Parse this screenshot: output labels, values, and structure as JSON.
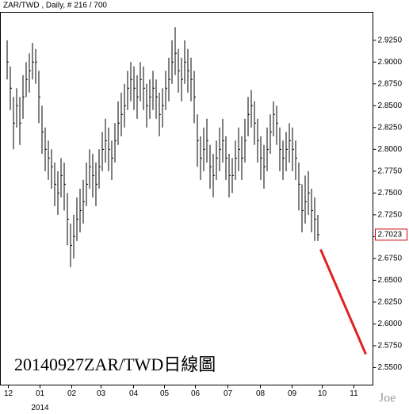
{
  "chart_data": {
    "type": "ohlc",
    "title": "ZAR/TWD , Daily, # 216 / 700",
    "annotation": "20140927ZAR/TWD日線圖",
    "watermark": "Joe",
    "x_sublabel": "2014",
    "color": "#000000",
    "high": [
      2.925,
      2.895,
      2.86,
      2.87,
      2.86,
      2.885,
      2.9,
      2.91,
      2.922,
      2.915,
      2.89,
      2.85,
      2.825,
      2.81,
      2.8,
      2.785,
      2.775,
      2.79,
      2.785,
      2.75,
      2.715,
      2.725,
      2.745,
      2.755,
      2.765,
      2.785,
      2.8,
      2.795,
      2.785,
      2.8,
      2.82,
      2.835,
      2.825,
      2.81,
      2.83,
      2.855,
      2.865,
      2.875,
      2.89,
      2.9,
      2.895,
      2.885,
      2.9,
      2.895,
      2.875,
      2.88,
      2.89,
      2.88,
      2.865,
      2.87,
      2.89,
      2.905,
      2.925,
      2.94,
      2.915,
      2.905,
      2.925,
      2.915,
      2.905,
      2.89,
      2.84,
      2.815,
      2.825,
      2.835,
      2.805,
      2.795,
      2.81,
      2.825,
      2.835,
      2.815,
      2.795,
      2.79,
      2.81,
      2.825,
      2.815,
      2.835,
      2.86,
      2.868,
      2.855,
      2.835,
      2.815,
      2.805,
      2.825,
      2.84,
      2.855,
      2.85,
      2.825,
      2.81,
      2.82,
      2.83,
      2.825,
      2.81,
      2.785,
      2.76,
      2.77,
      2.775,
      2.755,
      2.745,
      2.725
    ],
    "low": [
      2.88,
      2.845,
      2.8,
      2.825,
      2.805,
      2.835,
      2.86,
      2.865,
      2.88,
      2.875,
      2.83,
      2.795,
      2.775,
      2.765,
      2.755,
      2.735,
      2.725,
      2.745,
      2.73,
      2.69,
      2.665,
      2.675,
      2.695,
      2.705,
      2.715,
      2.735,
      2.755,
      2.745,
      2.735,
      2.755,
      2.775,
      2.785,
      2.775,
      2.765,
      2.785,
      2.805,
      2.815,
      2.825,
      2.845,
      2.855,
      2.845,
      2.835,
      2.855,
      2.845,
      2.825,
      2.835,
      2.845,
      2.835,
      2.815,
      2.825,
      2.845,
      2.855,
      2.875,
      2.885,
      2.865,
      2.855,
      2.875,
      2.865,
      2.855,
      2.83,
      2.78,
      2.765,
      2.775,
      2.785,
      2.755,
      2.745,
      2.765,
      2.775,
      2.785,
      2.765,
      2.745,
      2.75,
      2.765,
      2.775,
      2.765,
      2.785,
      2.815,
      2.825,
      2.805,
      2.785,
      2.765,
      2.755,
      2.775,
      2.795,
      2.815,
      2.805,
      2.775,
      2.765,
      2.775,
      2.785,
      2.775,
      2.765,
      2.73,
      2.705,
      2.715,
      2.725,
      2.705,
      2.695,
      2.695
    ],
    "close": [
      2.9,
      2.87,
      2.83,
      2.85,
      2.83,
      2.86,
      2.88,
      2.89,
      2.9,
      2.9,
      2.86,
      2.82,
      2.8,
      2.79,
      2.78,
      2.76,
      2.75,
      2.77,
      2.76,
      2.72,
      2.69,
      2.7,
      2.72,
      2.73,
      2.74,
      2.76,
      2.78,
      2.77,
      2.76,
      2.78,
      2.8,
      2.81,
      2.8,
      2.79,
      2.81,
      2.83,
      2.84,
      2.85,
      2.87,
      2.88,
      2.87,
      2.86,
      2.88,
      2.87,
      2.85,
      2.86,
      2.87,
      2.86,
      2.84,
      2.85,
      2.87,
      2.88,
      2.9,
      2.91,
      2.89,
      2.88,
      2.9,
      2.89,
      2.88,
      2.86,
      2.81,
      2.79,
      2.8,
      2.81,
      2.78,
      2.77,
      2.79,
      2.8,
      2.81,
      2.79,
      2.77,
      2.77,
      2.79,
      2.8,
      2.79,
      2.81,
      2.84,
      2.85,
      2.83,
      2.81,
      2.79,
      2.78,
      2.8,
      2.82,
      2.84,
      2.83,
      2.8,
      2.79,
      2.8,
      2.81,
      2.8,
      2.79,
      2.76,
      2.73,
      2.74,
      2.75,
      2.73,
      2.72,
      2.7023
    ],
    "last_price": 2.7023,
    "last_price_color": "#d00000",
    "trend_line": {
      "x": [
        99,
        113.25
      ],
      "y": [
        2.6853,
        2.5654
      ],
      "color": "#e02020"
    },
    "xlim": [
      -2,
      115.5
    ],
    "xticks": [
      {
        "value": 0.5,
        "label": "12"
      },
      {
        "value": 10.5,
        "label": "01"
      },
      {
        "value": 20.5,
        "label": "02"
      },
      {
        "value": 29.75,
        "label": "03"
      },
      {
        "value": 40,
        "label": "04"
      },
      {
        "value": 49.75,
        "label": "05"
      },
      {
        "value": 59.5,
        "label": "06"
      },
      {
        "value": 69.75,
        "label": "07"
      },
      {
        "value": 80,
        "label": "08"
      },
      {
        "value": 90,
        "label": "09"
      },
      {
        "value": 99.5,
        "label": "10"
      },
      {
        "value": 109.5,
        "label": "11"
      }
    ],
    "ylim": [
      2.53,
      2.957
    ],
    "yticks": [
      {
        "value": 2.55,
        "label": "2.5500"
      },
      {
        "value": 2.575,
        "label": "2.5750"
      },
      {
        "value": 2.6,
        "label": "2.6000"
      },
      {
        "value": 2.625,
        "label": "2.6250"
      },
      {
        "value": 2.65,
        "label": "2.6500"
      },
      {
        "value": 2.675,
        "label": "2.6750"
      },
      {
        "value": 2.7,
        "label": "2.7000"
      },
      {
        "value": 2.725,
        "label": "2.7250"
      },
      {
        "value": 2.75,
        "label": "2.7500"
      },
      {
        "value": 2.775,
        "label": "2.7750"
      },
      {
        "value": 2.8,
        "label": "2.8000"
      },
      {
        "value": 2.825,
        "label": "2.8250"
      },
      {
        "value": 2.85,
        "label": "2.8500"
      },
      {
        "value": 2.875,
        "label": "2.8750"
      },
      {
        "value": 2.9,
        "label": "2.9000"
      },
      {
        "value": 2.925,
        "label": "2.9250"
      }
    ]
  }
}
